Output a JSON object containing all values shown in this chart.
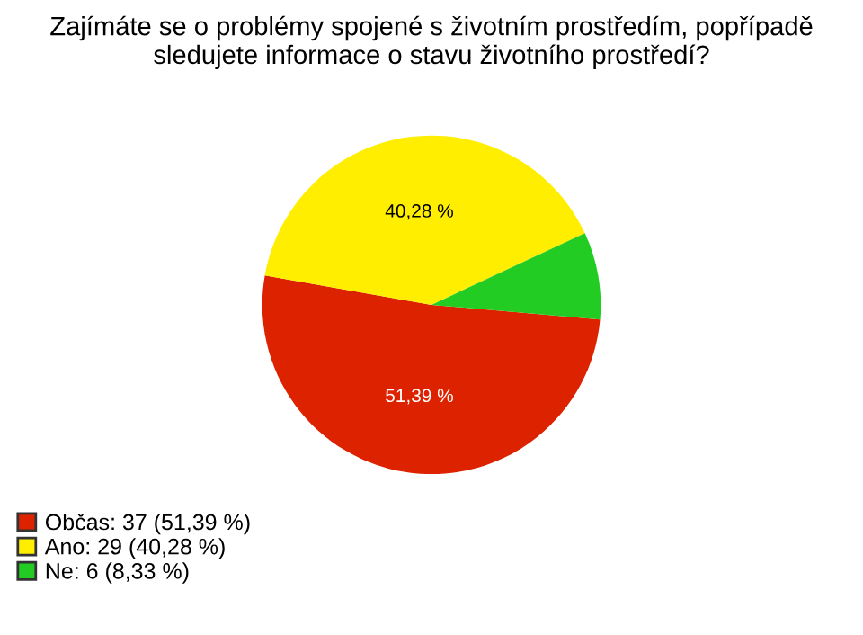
{
  "chart_data": {
    "type": "pie",
    "title": "Zajímáte se o problémy spojené s životním prostředím, popřípadě\nsledujete informace o stavu životního prostředí?",
    "categories": [
      "Občas: 37 (51,39 %)",
      "Ano: 29 (40,28 %)",
      "Ne: 6 (8,33 %)"
    ],
    "values": [
      51.39,
      40.28,
      8.33
    ],
    "colors": [
      "#dd2200",
      "#ffee00",
      "#22cc22"
    ],
    "value_labels": [
      "51,39 %",
      "40,28 %",
      null
    ],
    "legend": "bottom left"
  }
}
